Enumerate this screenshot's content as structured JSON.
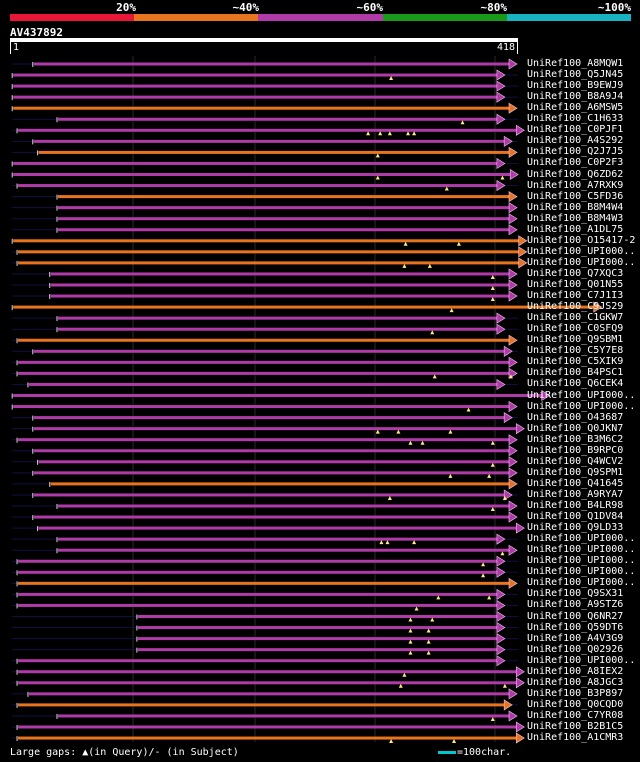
{
  "legend": {
    "labels": [
      "20%",
      "~40%",
      "~60%",
      "~80%",
      "~100%"
    ],
    "colors": [
      "#e8173a",
      "#e8741e",
      "#b03aa8",
      "#1a9a1a",
      "#18b2c2"
    ]
  },
  "query": {
    "id": "AV437892",
    "start": "1",
    "end": "418",
    "length": 418
  },
  "hits": [
    {
      "name": "UniRef100_A8MQW1",
      "s": 18,
      "e": 418,
      "c": "p",
      "qg": [],
      "sg": []
    },
    {
      "name": "UniRef100_Q5JN45",
      "s": 1,
      "e": 408,
      "c": "p",
      "qg": [
        314
      ],
      "sg": []
    },
    {
      "name": "UniRef100_B9EWJ9",
      "s": 1,
      "e": 408,
      "c": "p",
      "qg": [],
      "sg": []
    },
    {
      "name": "UniRef100_B8A9J4",
      "s": 1,
      "e": 408,
      "c": "p",
      "qg": [],
      "sg": []
    },
    {
      "name": "UniRef100_A6MSW5",
      "s": 1,
      "e": 418,
      "c": "o",
      "qg": [],
      "sg": []
    },
    {
      "name": "UniRef100_C1H633",
      "s": 38,
      "e": 408,
      "c": "p",
      "qg": [
        373
      ],
      "sg": []
    },
    {
      "name": "UniRef100_C0PJF1",
      "s": 5,
      "e": 424,
      "c": "p",
      "qg": [
        295,
        305,
        313,
        328,
        333
      ],
      "sg": []
    },
    {
      "name": "UniRef100_A4S292",
      "s": 18,
      "e": 414,
      "c": "p",
      "qg": [],
      "sg": []
    },
    {
      "name": "UniRef100_Q2J7J5",
      "s": 22,
      "e": 418,
      "c": "o",
      "qg": [
        303
      ],
      "sg": []
    },
    {
      "name": "UniRef100_C0P2F3",
      "s": 1,
      "e": 408,
      "c": "p",
      "qg": [],
      "sg": []
    },
    {
      "name": "UniRef100_Q6ZD62",
      "s": 1,
      "e": 419,
      "c": "p",
      "qg": [
        303,
        406
      ],
      "sg": []
    },
    {
      "name": "UniRef100_A7RXK9",
      "s": 5,
      "e": 408,
      "c": "p",
      "qg": [
        360
      ],
      "sg": []
    },
    {
      "name": "UniRef100_C5FD36",
      "s": 38,
      "e": 418,
      "c": "o",
      "qg": [],
      "sg": []
    },
    {
      "name": "UniRef100_B8M4W4",
      "s": 38,
      "e": 418,
      "c": "p",
      "qg": [],
      "sg": []
    },
    {
      "name": "UniRef100_B8M4W3",
      "s": 38,
      "e": 418,
      "c": "p",
      "qg": [],
      "sg": []
    },
    {
      "name": "UniRef100_A1DL75",
      "s": 38,
      "e": 418,
      "c": "p",
      "qg": [],
      "sg": []
    },
    {
      "name": "UniRef100_O15417-2",
      "s": 1,
      "e": 426,
      "c": "o",
      "qg": [
        326,
        370
      ],
      "sg": []
    },
    {
      "name": "UniRef100_UPI000..",
      "s": 5,
      "e": 426,
      "c": "o",
      "qg": [],
      "sg": []
    },
    {
      "name": "UniRef100_UPI000..",
      "s": 5,
      "e": 426,
      "c": "o",
      "qg": [
        325,
        346
      ],
      "sg": []
    },
    {
      "name": "UniRef100_Q7XQC3",
      "s": 32,
      "e": 418,
      "c": "p",
      "qg": [
        398
      ],
      "sg": []
    },
    {
      "name": "UniRef100_Q01N55",
      "s": 32,
      "e": 418,
      "c": "p",
      "qg": [
        398
      ],
      "sg": []
    },
    {
      "name": "UniRef100_C7J1I3",
      "s": 32,
      "e": 418,
      "c": "p",
      "qg": [
        398
      ],
      "sg": []
    },
    {
      "name": "UniRef100_C9JS29",
      "s": 1,
      "e": 488,
      "c": "o",
      "qg": [
        364
      ],
      "sg": []
    },
    {
      "name": "UniRef100_C1GKW7",
      "s": 38,
      "e": 408,
      "c": "p",
      "qg": [],
      "sg": []
    },
    {
      "name": "UniRef100_C0SFQ9",
      "s": 38,
      "e": 408,
      "c": "p",
      "qg": [
        348
      ],
      "sg": []
    },
    {
      "name": "UniRef100_Q9SBM1",
      "s": 5,
      "e": 418,
      "c": "o",
      "qg": [],
      "sg": []
    },
    {
      "name": "UniRef100_C5Y7E8",
      "s": 18,
      "e": 414,
      "c": "p",
      "qg": [],
      "sg": []
    },
    {
      "name": "UniRef100_C5XIK9",
      "s": 5,
      "e": 418,
      "c": "p",
      "qg": [],
      "sg": []
    },
    {
      "name": "UniRef100_B4PSC1",
      "s": 5,
      "e": 418,
      "c": "p",
      "qg": [
        350,
        413
      ],
      "sg": []
    },
    {
      "name": "UniRef100_Q6CEK4",
      "s": 14,
      "e": 408,
      "c": "p",
      "qg": [],
      "sg": []
    },
    {
      "name": "UniRef100_UPI000..",
      "s": 1,
      "e": 445,
      "c": "p",
      "qg": [],
      "sg": []
    },
    {
      "name": "UniRef100_UPI000..",
      "s": 1,
      "e": 418,
      "c": "p",
      "qg": [
        378
      ],
      "sg": []
    },
    {
      "name": "UniRef100_O43687",
      "s": 18,
      "e": 414,
      "c": "p",
      "qg": [],
      "sg": []
    },
    {
      "name": "UniRef100_Q0JKN7",
      "s": 18,
      "e": 424,
      "c": "p",
      "qg": [
        303,
        320,
        363
      ],
      "sg": []
    },
    {
      "name": "UniRef100_B3M6C2",
      "s": 5,
      "e": 418,
      "c": "p",
      "qg": [
        330,
        340,
        398
      ],
      "sg": []
    },
    {
      "name": "UniRef100_B9RPC0",
      "s": 18,
      "e": 418,
      "c": "p",
      "qg": [],
      "sg": []
    },
    {
      "name": "UniRef100_Q4WCV2",
      "s": 22,
      "e": 418,
      "c": "p",
      "qg": [
        398
      ],
      "sg": []
    },
    {
      "name": "UniRef100_Q9SPM1",
      "s": 18,
      "e": 418,
      "c": "p",
      "qg": [
        363,
        395
      ],
      "sg": []
    },
    {
      "name": "UniRef100_Q41645",
      "s": 32,
      "e": 418,
      "c": "o",
      "qg": [],
      "sg": []
    },
    {
      "name": "UniRef100_A9RYA7",
      "s": 18,
      "e": 414,
      "c": "p",
      "qg": [
        313,
        408
      ],
      "sg": []
    },
    {
      "name": "UniRef100_B4LR98",
      "s": 38,
      "e": 418,
      "c": "p",
      "qg": [
        398
      ],
      "sg": []
    },
    {
      "name": "UniRef100_Q1DV84",
      "s": 18,
      "e": 418,
      "c": "p",
      "qg": [],
      "sg": []
    },
    {
      "name": "UniRef100_Q9LD33",
      "s": 22,
      "e": 424,
      "c": "p",
      "qg": [],
      "sg": []
    },
    {
      "name": "UniRef100_UPI000..",
      "s": 38,
      "e": 408,
      "c": "p",
      "qg": [
        306,
        311,
        333
      ],
      "sg": []
    },
    {
      "name": "UniRef100_UPI000..",
      "s": 38,
      "e": 418,
      "c": "p",
      "qg": [
        406
      ],
      "sg": []
    },
    {
      "name": "UniRef100_UPI000..",
      "s": 5,
      "e": 408,
      "c": "p",
      "qg": [
        390
      ],
      "sg": []
    },
    {
      "name": "UniRef100_UPI000..",
      "s": 5,
      "e": 408,
      "c": "p",
      "qg": [
        390
      ],
      "sg": []
    },
    {
      "name": "UniRef100_UPI000..",
      "s": 5,
      "e": 418,
      "c": "o",
      "qg": [],
      "sg": []
    },
    {
      "name": "UniRef100_Q9SX31",
      "s": 5,
      "e": 408,
      "c": "p",
      "qg": [
        353,
        395
      ],
      "sg": []
    },
    {
      "name": "UniRef100_A9STZ6",
      "s": 5,
      "e": 408,
      "c": "p",
      "qg": [
        335
      ],
      "sg": []
    },
    {
      "name": "UniRef100_Q6NR27",
      "s": 104,
      "e": 408,
      "c": "p",
      "qg": [
        330,
        348
      ],
      "sg": []
    },
    {
      "name": "UniRef100_Q59DT6",
      "s": 104,
      "e": 408,
      "c": "p",
      "qg": [
        330,
        345
      ],
      "sg": []
    },
    {
      "name": "UniRef100_A4V3G9",
      "s": 104,
      "e": 408,
      "c": "p",
      "qg": [
        330,
        345
      ],
      "sg": []
    },
    {
      "name": "UniRef100_Q02926",
      "s": 104,
      "e": 408,
      "c": "p",
      "qg": [
        330,
        345
      ],
      "sg": []
    },
    {
      "name": "UniRef100_UPI000..",
      "s": 5,
      "e": 408,
      "c": "p",
      "qg": [],
      "sg": []
    },
    {
      "name": "UniRef100_A8IEX2",
      "s": 5,
      "e": 424,
      "c": "p",
      "qg": [
        325
      ],
      "sg": []
    },
    {
      "name": "UniRef100_A8JGC3",
      "s": 5,
      "e": 424,
      "c": "p",
      "qg": [
        322,
        408
      ],
      "sg": []
    },
    {
      "name": "UniRef100_B3P897",
      "s": 14,
      "e": 418,
      "c": "p",
      "qg": [],
      "sg": []
    },
    {
      "name": "UniRef100_Q0CQD0",
      "s": 5,
      "e": 414,
      "c": "o",
      "qg": [],
      "sg": []
    },
    {
      "name": "UniRef100_C7YR08",
      "s": 38,
      "e": 418,
      "c": "p",
      "qg": [
        398
      ],
      "sg": []
    },
    {
      "name": "UniRef100_B2B1C5",
      "s": 5,
      "e": 424,
      "c": "p",
      "qg": [],
      "sg": []
    },
    {
      "name": "UniRef100_A1CMR3",
      "s": 5,
      "e": 424,
      "c": "o",
      "qg": [
        314,
        366
      ],
      "sg": []
    }
  ],
  "footer": {
    "text": "Large gaps: ▲(in Query)/- (in Subject)",
    "scale": "=100char."
  }
}
